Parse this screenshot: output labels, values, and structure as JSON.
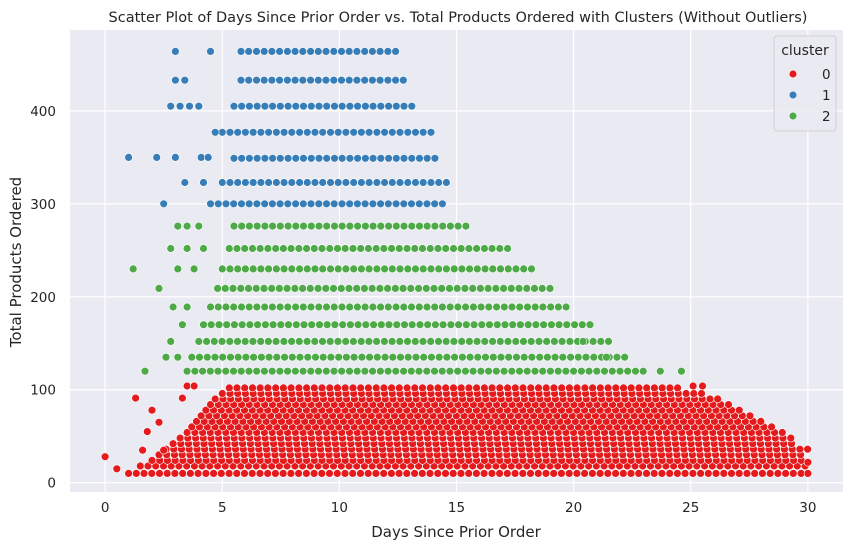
{
  "chart_data": {
    "type": "scatter",
    "title": "Scatter Plot of Days Since Prior Order vs. Total Products Ordered with Clusters (Without Outliers)",
    "xlabel": "Days Since Prior Order",
    "ylabel": "Total Products Ordered",
    "xlim": [
      -1.5,
      31.5
    ],
    "ylim": [
      -10,
      487
    ],
    "x_ticks": [
      0,
      5,
      10,
      15,
      20,
      25,
      30
    ],
    "y_ticks": [
      0,
      100,
      200,
      300,
      400
    ],
    "grid": true,
    "legend": {
      "title": "cluster",
      "placement": "top-right"
    },
    "series": [
      {
        "name": "0",
        "color": "#e41a1c",
        "bands": [
          {
            "y": 10,
            "x_start": 1,
            "x_end": 30
          },
          {
            "y": 18,
            "x_start": 1.5,
            "x_end": 30
          },
          {
            "y": 24,
            "x_start": 2,
            "x_end": 30
          },
          {
            "y": 30,
            "x_start": 2.3,
            "x_end": 30
          },
          {
            "y": 36,
            "x_start": 2.6,
            "x_end": 30
          },
          {
            "y": 42,
            "x_start": 2.9,
            "x_end": 29.5
          },
          {
            "y": 48,
            "x_start": 3.2,
            "x_end": 29.3
          },
          {
            "y": 54,
            "x_start": 3.5,
            "x_end": 29
          },
          {
            "y": 60,
            "x_start": 3.7,
            "x_end": 28.5
          },
          {
            "y": 66,
            "x_start": 3.9,
            "x_end": 28
          },
          {
            "y": 72,
            "x_start": 4.1,
            "x_end": 27.7
          },
          {
            "y": 78,
            "x_start": 4.3,
            "x_end": 27.3
          },
          {
            "y": 84,
            "x_start": 4.5,
            "x_end": 26.8
          },
          {
            "y": 90,
            "x_start": 4.7,
            "x_end": 26.2
          },
          {
            "y": 96,
            "x_start": 5,
            "x_end": 25.5
          },
          {
            "y": 102,
            "x_start": 5.3,
            "x_end": 24.5
          }
        ],
        "extra_points": [
          [
            0,
            28
          ],
          [
            0.5,
            15
          ],
          [
            1.3,
            91
          ],
          [
            1.6,
            35
          ],
          [
            1.8,
            55
          ],
          [
            2,
            78
          ],
          [
            2.3,
            65
          ],
          [
            2.5,
            35
          ],
          [
            2.9,
            42
          ],
          [
            3.3,
            91
          ],
          [
            3.5,
            104
          ],
          [
            3.8,
            104
          ],
          [
            25.1,
            104
          ],
          [
            25.5,
            104
          ],
          [
            30,
            22
          ],
          [
            30,
            10
          ]
        ]
      },
      {
        "name": "1",
        "color": "#377eb8",
        "bands": [
          {
            "y": 300,
            "x_start": 4.5,
            "x_end": 14.5
          },
          {
            "y": 323,
            "x_start": 5,
            "x_end": 14.8
          },
          {
            "y": 349,
            "x_start": 5.5,
            "x_end": 14.3
          },
          {
            "y": 377,
            "x_start": 5,
            "x_end": 14
          },
          {
            "y": 405,
            "x_start": 5.5,
            "x_end": 13.3
          },
          {
            "y": 433,
            "x_start": 5.8,
            "x_end": 12.8
          },
          {
            "y": 464,
            "x_start": 5.8,
            "x_end": 12.5
          }
        ],
        "extra_points": [
          [
            1,
            350
          ],
          [
            2.2,
            350
          ],
          [
            3,
            350
          ],
          [
            4.1,
            350
          ],
          [
            4.4,
            350
          ],
          [
            2.5,
            300
          ],
          [
            3.4,
            323
          ],
          [
            4.2,
            323
          ],
          [
            4.7,
            377
          ],
          [
            2.8,
            405
          ],
          [
            3.2,
            405
          ],
          [
            3.6,
            405
          ],
          [
            4,
            405
          ],
          [
            3,
            433
          ],
          [
            3.4,
            433
          ],
          [
            3,
            464
          ],
          [
            4.5,
            464
          ]
        ]
      },
      {
        "name": "2",
        "color": "#4daa47",
        "bands": [
          {
            "y": 120,
            "x_start": 3.5,
            "x_end": 23
          },
          {
            "y": 135,
            "x_start": 3.7,
            "x_end": 22.5
          },
          {
            "y": 152,
            "x_start": 4,
            "x_end": 21.8
          },
          {
            "y": 170,
            "x_start": 4.2,
            "x_end": 21
          },
          {
            "y": 189,
            "x_start": 4.5,
            "x_end": 20
          },
          {
            "y": 209,
            "x_start": 4.8,
            "x_end": 19
          },
          {
            "y": 230,
            "x_start": 5,
            "x_end": 18.5
          },
          {
            "y": 252,
            "x_start": 5.3,
            "x_end": 17.3
          },
          {
            "y": 276,
            "x_start": 5.5,
            "x_end": 15.7
          }
        ],
        "extra_points": [
          [
            1.7,
            120
          ],
          [
            2.6,
            135
          ],
          [
            3.1,
            135
          ],
          [
            2.8,
            152
          ],
          [
            3.3,
            170
          ],
          [
            2.9,
            189
          ],
          [
            3.5,
            189
          ],
          [
            2.3,
            209
          ],
          [
            1.2,
            230
          ],
          [
            3.1,
            230
          ],
          [
            3.8,
            230
          ],
          [
            2.8,
            252
          ],
          [
            3.5,
            252
          ],
          [
            4.2,
            252
          ],
          [
            3.1,
            276
          ],
          [
            3.5,
            276
          ],
          [
            4,
            276
          ],
          [
            20.4,
            152
          ],
          [
            21.4,
            135
          ],
          [
            23.7,
            120
          ],
          [
            24.6,
            120
          ]
        ]
      }
    ]
  }
}
